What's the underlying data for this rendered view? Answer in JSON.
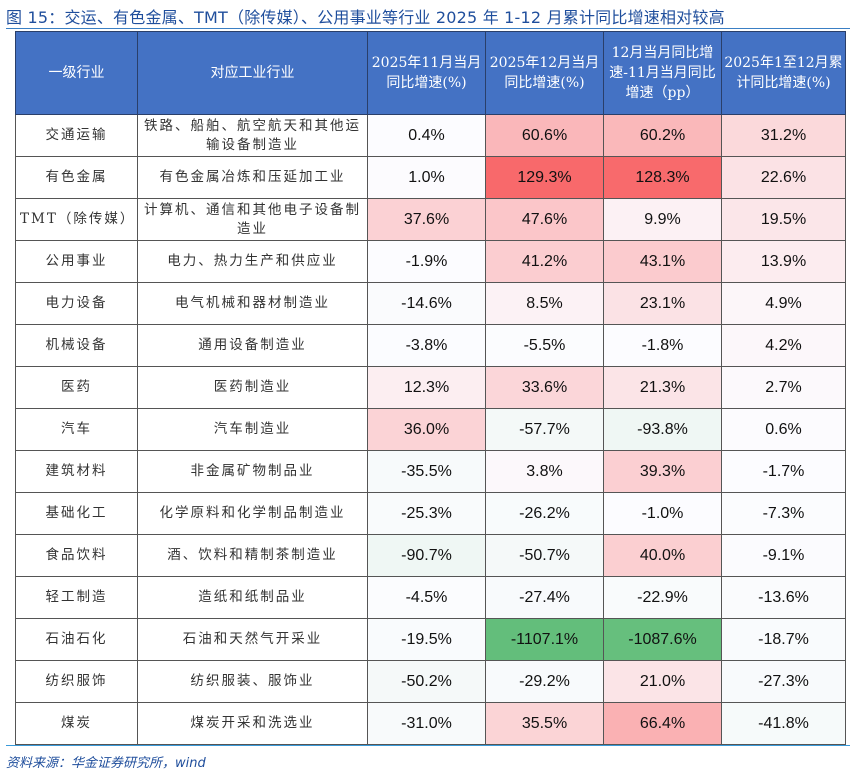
{
  "title": "图 15：交运、有色金属、TMT（除传媒）、公用事业等行业 2025 年 1-12 月累计同比增速相对较高",
  "headers": [
    "一级行业",
    "对应工业行业",
    "2025年11月当月同比增速(%)",
    "2025年12月当月同比增速(%)",
    "12月当月同比增速-11月当月同比增速（pp）",
    "2025年1至12月累计同比增速(%)"
  ],
  "colors": {
    "header_bg": "#4472c4",
    "high": "#f8696b",
    "mid": "#fcfcff",
    "low": "#63be7b"
  },
  "rows": [
    {
      "sector": "交通运输",
      "industry": "铁路、船舶、航空航天和其他运输设备制造业",
      "values": [
        "0.4%",
        "60.6%",
        "60.2%",
        "31.2%"
      ]
    },
    {
      "sector": "有色金属",
      "industry": "有色金属冶炼和压延加工业",
      "values": [
        "1.0%",
        "129.3%",
        "128.3%",
        "22.6%"
      ]
    },
    {
      "sector": "TMT（除传媒）",
      "industry": "计算机、通信和其他电子设备制造业",
      "values": [
        "37.6%",
        "47.6%",
        "9.9%",
        "19.5%"
      ]
    },
    {
      "sector": "公用事业",
      "industry": "电力、热力生产和供应业",
      "values": [
        "-1.9%",
        "41.2%",
        "43.1%",
        "13.9%"
      ]
    },
    {
      "sector": "电力设备",
      "industry": "电气机械和器材制造业",
      "values": [
        "-14.6%",
        "8.5%",
        "23.1%",
        "4.9%"
      ]
    },
    {
      "sector": "机械设备",
      "industry": "通用设备制造业",
      "values": [
        "-3.8%",
        "-5.5%",
        "-1.8%",
        "4.2%"
      ]
    },
    {
      "sector": "医药",
      "industry": "医药制造业",
      "values": [
        "12.3%",
        "33.6%",
        "21.3%",
        "2.7%"
      ]
    },
    {
      "sector": "汽车",
      "industry": "汽车制造业",
      "values": [
        "36.0%",
        "-57.7%",
        "-93.8%",
        "0.6%"
      ]
    },
    {
      "sector": "建筑材料",
      "industry": "非金属矿物制品业",
      "values": [
        "-35.5%",
        "3.8%",
        "39.3%",
        "-1.7%"
      ]
    },
    {
      "sector": "基础化工",
      "industry": "化学原料和化学制品制造业",
      "values": [
        "-25.3%",
        "-26.2%",
        "-1.0%",
        "-7.3%"
      ]
    },
    {
      "sector": "食品饮料",
      "industry": "酒、饮料和精制茶制造业",
      "values": [
        "-90.7%",
        "-50.7%",
        "40.0%",
        "-9.1%"
      ]
    },
    {
      "sector": "轻工制造",
      "industry": "造纸和纸制品业",
      "values": [
        "-4.5%",
        "-27.4%",
        "-22.9%",
        "-13.6%"
      ]
    },
    {
      "sector": "石油石化",
      "industry": "石油和天然气开采业",
      "values": [
        "-19.5%",
        "-1107.1%",
        "-1087.6%",
        "-18.7%"
      ]
    },
    {
      "sector": "纺织服饰",
      "industry": "纺织服装、服饰业",
      "values": [
        "-50.2%",
        "-29.2%",
        "21.0%",
        "-27.3%"
      ]
    },
    {
      "sector": "煤炭",
      "industry": "煤炭开采和洗选业",
      "values": [
        "-31.0%",
        "35.5%",
        "66.4%",
        "-41.8%"
      ]
    }
  ],
  "source": "资料来源：华金证券研究所，wind"
}
